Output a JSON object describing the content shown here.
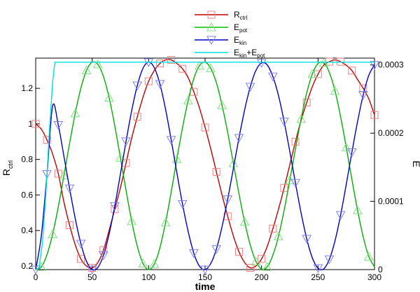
{
  "chart_data": {
    "type": "line",
    "xlabel": "time",
    "ylabel_left": {
      "main": "R",
      "sub": "ctrl"
    },
    "ylabel_right": "E",
    "xlim": [
      0,
      300
    ],
    "ylim_left": [
      0.18,
      1.37
    ],
    "ylim_right": [
      0,
      0.00031
    ],
    "x_ticks": [
      "0",
      "50",
      "100",
      "150",
      "200",
      "250",
      "300"
    ],
    "y_left_ticks": [
      "0.2",
      "0.4",
      "0.6",
      "0.8",
      "1",
      "1.2"
    ],
    "y_right_ticks": [
      "0",
      "0.0001",
      "0.0002",
      "0.0003"
    ],
    "legend": [
      {
        "main": "R",
        "sub": "ctrl",
        "tail": [],
        "color": "#c00000",
        "marker": "square"
      },
      {
        "main": "E",
        "sub": "pot",
        "tail": [],
        "color": "#00c000",
        "marker": "triangle-up"
      },
      {
        "main": "E",
        "sub": "kin",
        "tail": [],
        "color": "#0000c8",
        "marker": "triangle-down"
      },
      {
        "main": "E",
        "sub": "kin",
        "tail": [
          {
            "t": "+E"
          },
          {
            "sub": "pot"
          }
        ],
        "color": "#00e0e0",
        "marker": "none"
      }
    ],
    "series": [
      {
        "name": "Rctrl",
        "axis": "left",
        "color": "#c00000",
        "marker": "square",
        "marker_color": "#f08080",
        "x": [
          0,
          5,
          10,
          15,
          20,
          25,
          30,
          35,
          40,
          45,
          50,
          55,
          60,
          65,
          70,
          75,
          80,
          85,
          90,
          95,
          100,
          105,
          110,
          115,
          120,
          125,
          130,
          135,
          140,
          145,
          150,
          155,
          160,
          165,
          170,
          175,
          180,
          185,
          190,
          195,
          200,
          205,
          210,
          215,
          220,
          225,
          230,
          235,
          240,
          245,
          250,
          255,
          260,
          265,
          270,
          275,
          280,
          285,
          290,
          295,
          300
        ],
        "y": [
          1.0,
          0.97,
          0.91,
          0.83,
          0.72,
          0.56,
          0.43,
          0.32,
          0.24,
          0.2,
          0.19,
          0.22,
          0.29,
          0.4,
          0.52,
          0.64,
          0.78,
          0.92,
          1.04,
          1.15,
          1.24,
          1.3,
          1.34,
          1.36,
          1.36,
          1.34,
          1.31,
          1.26,
          1.18,
          1.09,
          0.98,
          0.86,
          0.73,
          0.6,
          0.48,
          0.37,
          0.28,
          0.22,
          0.19,
          0.2,
          0.24,
          0.31,
          0.41,
          0.52,
          0.64,
          0.77,
          0.9,
          1.02,
          1.12,
          1.21,
          1.28,
          1.33,
          1.35,
          1.36,
          1.35,
          1.33,
          1.3,
          1.25,
          1.2,
          1.14,
          1.05
        ]
      },
      {
        "name": "Epot",
        "axis": "right",
        "color": "#00b000",
        "marker": "triangle-up",
        "marker_color": "#80e080",
        "x": [
          0,
          5,
          10,
          15,
          20,
          25,
          30,
          35,
          40,
          45,
          50,
          55,
          60,
          65,
          70,
          75,
          80,
          85,
          90,
          95,
          100,
          105,
          110,
          115,
          120,
          125,
          130,
          135,
          140,
          145,
          150,
          155,
          160,
          165,
          170,
          175,
          180,
          185,
          190,
          195,
          200,
          205,
          210,
          215,
          220,
          225,
          230,
          235,
          240,
          245,
          250,
          255,
          260,
          265,
          270,
          275,
          280,
          285,
          290,
          295,
          300
        ],
        "y": [
          0.0,
          4e-06,
          2.2e-05,
          5.2e-05,
          9.2e-05,
          0.000138,
          0.000185,
          0.000229,
          0.000266,
          0.000292,
          0.000304,
          0.000301,
          0.000283,
          0.000252,
          0.000211,
          0.000164,
          0.000116,
          7.1e-05,
          3.4e-05,
          9e-06,
          0.0,
          8e-06,
          3.2e-05,
          6.9e-05,
          0.000114,
          0.000162,
          0.000208,
          0.000248,
          0.00028,
          0.000299,
          0.000304,
          0.000295,
          0.000274,
          0.000241,
          0.000201,
          0.000156,
          0.000111,
          7e-05,
          3.6e-05,
          1.2e-05,
          1e-06,
          4e-06,
          2.1e-05,
          4.9e-05,
          8.7e-05,
          0.000131,
          0.000177,
          0.000221,
          0.000259,
          0.000287,
          0.000302,
          0.000303,
          0.000289,
          0.000262,
          0.000224,
          0.000179,
          0.000132,
          8.7e-05,
          4.8e-05,
          1.9e-05,
          4e-06
        ]
      },
      {
        "name": "Ekin",
        "axis": "right",
        "color": "#0000c8",
        "marker": "triangle-down",
        "marker_color": "#8080f0",
        "x": [
          0,
          5,
          10,
          15,
          20,
          25,
          30,
          35,
          40,
          45,
          50,
          55,
          60,
          65,
          70,
          75,
          80,
          85,
          90,
          95,
          100,
          105,
          110,
          115,
          120,
          125,
          130,
          135,
          140,
          145,
          150,
          155,
          160,
          165,
          170,
          175,
          180,
          185,
          190,
          195,
          200,
          205,
          210,
          215,
          220,
          225,
          230,
          235,
          240,
          245,
          250,
          255,
          260,
          265,
          270,
          275,
          280,
          285,
          290,
          295,
          300
        ],
        "y": [
          0.0,
          5e-05,
          0.00014,
          0.00024,
          0.000212,
          0.000166,
          0.000119,
          7.5e-05,
          3.8e-05,
          1.2e-05,
          0.0,
          3e-06,
          2.1e-05,
          5.2e-05,
          9.3e-05,
          0.00014,
          0.000188,
          0.000233,
          0.00027,
          0.000295,
          0.000304,
          0.000296,
          0.000272,
          0.000235,
          0.00019,
          0.000142,
          9.6e-05,
          5.6e-05,
          2.4e-05,
          5e-06,
          0.0,
          9e-06,
          3e-05,
          6.3e-05,
          0.000103,
          0.000148,
          0.000193,
          0.000234,
          0.000268,
          0.000292,
          0.000303,
          0.0003,
          0.000283,
          0.000255,
          0.000217,
          0.000173,
          0.000127,
          8.3e-05,
          4.5e-05,
          1.7e-05,
          2e-06,
          1e-06,
          1.5e-05,
          4.2e-05,
          8e-05,
          0.000125,
          0.000172,
          0.000217,
          0.000256,
          0.000285,
          0.0003
        ]
      },
      {
        "name": "Ekin+Epot",
        "axis": "right",
        "color": "#00e0e0",
        "marker": "none",
        "x": [
          0,
          3,
          6,
          9,
          12,
          15,
          17,
          20,
          50,
          100,
          150,
          200,
          250,
          300
        ],
        "y": [
          0.0,
          3e-06,
          4e-05,
          0.00011,
          0.0002,
          0.000275,
          0.000304,
          0.000304,
          0.000304,
          0.000304,
          0.000304,
          0.000304,
          0.000304,
          0.000304
        ]
      }
    ]
  }
}
